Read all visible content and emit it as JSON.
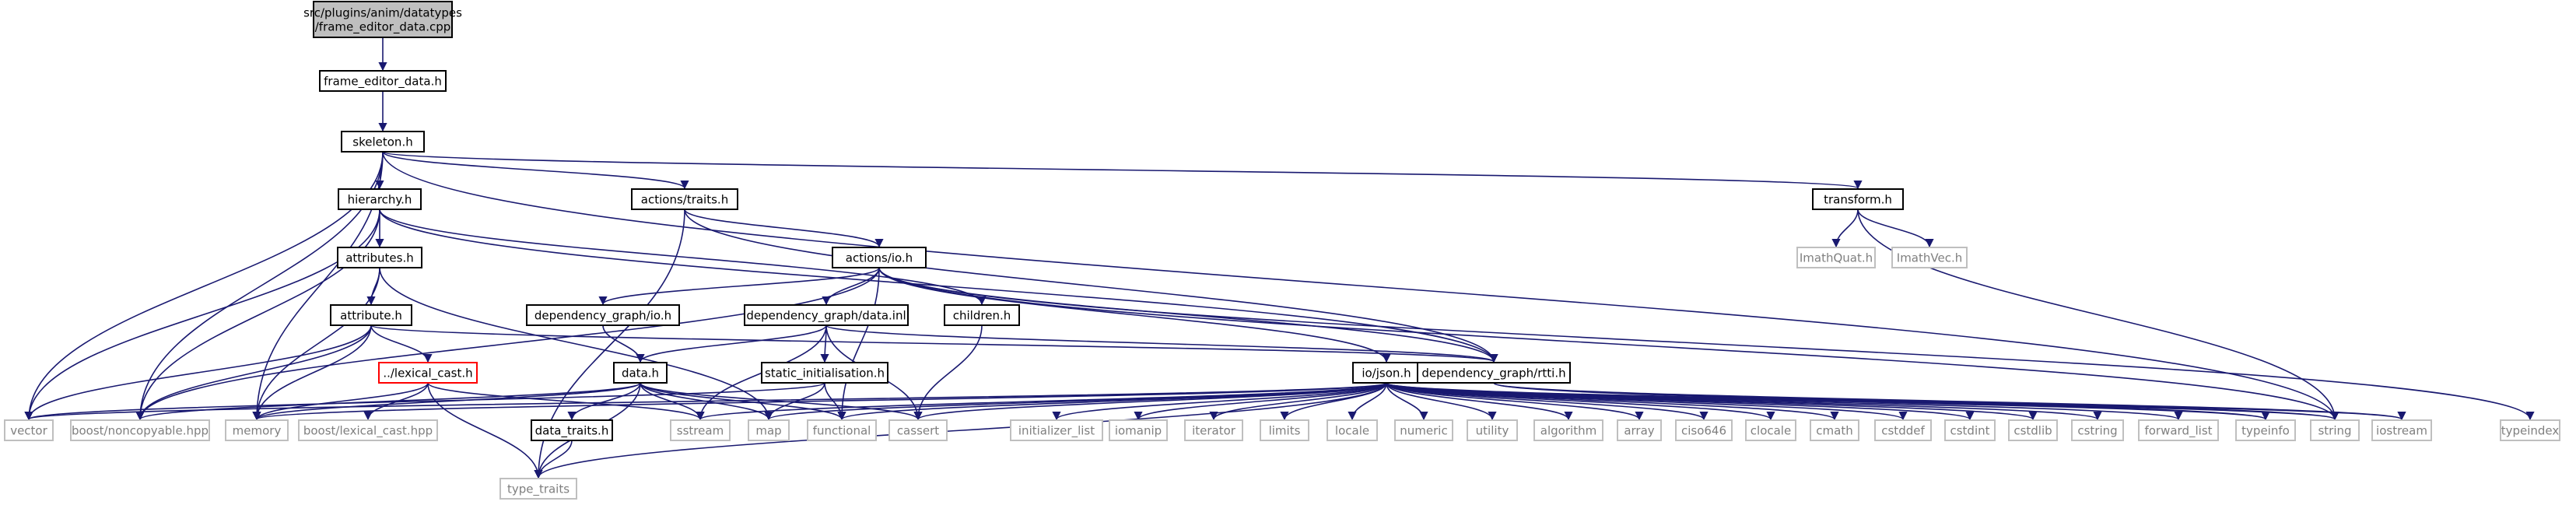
{
  "colors": {
    "edge": "#191970",
    "node_border": "#000000",
    "node_fill": "#ffffff",
    "root_fill": "#bfbfbf",
    "system_border": "#bfbfbf",
    "system_text": "#7f7f7f",
    "error_border": "#ff0000"
  },
  "nodes": [
    {
      "id": "root",
      "lines": [
        "src/plugins/anim/datatypes",
        "/frame_editor_data.cpp"
      ],
      "style": "root"
    },
    {
      "id": "frame_editor_data_h",
      "lines": [
        "frame_editor_data.h"
      ],
      "style": "normal"
    },
    {
      "id": "skeleton_h",
      "lines": [
        "skeleton.h"
      ],
      "style": "normal"
    },
    {
      "id": "hierarchy_h",
      "lines": [
        "hierarchy.h"
      ],
      "style": "normal"
    },
    {
      "id": "actions_traits_h",
      "lines": [
        "actions/traits.h"
      ],
      "style": "normal"
    },
    {
      "id": "transform_h",
      "lines": [
        "transform.h"
      ],
      "style": "normal"
    },
    {
      "id": "attributes_h",
      "lines": [
        "attributes.h"
      ],
      "style": "normal"
    },
    {
      "id": "actions_io_h",
      "lines": [
        "actions/io.h"
      ],
      "style": "normal"
    },
    {
      "id": "imathquat_h",
      "lines": [
        "ImathQuat.h"
      ],
      "style": "system"
    },
    {
      "id": "imathvec_h",
      "lines": [
        "ImathVec.h"
      ],
      "style": "system"
    },
    {
      "id": "attribute_h",
      "lines": [
        "attribute.h"
      ],
      "style": "normal"
    },
    {
      "id": "dependency_graph_io_h",
      "lines": [
        "dependency_graph/io.h"
      ],
      "style": "normal"
    },
    {
      "id": "dependency_graph_data_inl",
      "lines": [
        "dependency_graph/data.inl"
      ],
      "style": "normal"
    },
    {
      "id": "children_h",
      "lines": [
        "children.h"
      ],
      "style": "normal"
    },
    {
      "id": "lexical_cast_h",
      "lines": [
        "../lexical_cast.h"
      ],
      "style": "error"
    },
    {
      "id": "data_h",
      "lines": [
        "data.h"
      ],
      "style": "normal"
    },
    {
      "id": "static_initialisation_h",
      "lines": [
        "static_initialisation.h"
      ],
      "style": "normal"
    },
    {
      "id": "io_json_h",
      "lines": [
        "io/json.h"
      ],
      "style": "normal"
    },
    {
      "id": "dependency_graph_rtti_h",
      "lines": [
        "dependency_graph/rtti.h"
      ],
      "style": "normal"
    },
    {
      "id": "data_traits_h",
      "lines": [
        "data_traits.h"
      ],
      "style": "normal"
    },
    {
      "id": "vector",
      "lines": [
        "vector"
      ],
      "style": "system"
    },
    {
      "id": "boost_noncopyable_hpp",
      "lines": [
        "boost/noncopyable.hpp"
      ],
      "style": "system"
    },
    {
      "id": "memory",
      "lines": [
        "memory"
      ],
      "style": "system"
    },
    {
      "id": "boost_lexical_cast_hpp",
      "lines": [
        "boost/lexical_cast.hpp"
      ],
      "style": "system"
    },
    {
      "id": "sstream",
      "lines": [
        "sstream"
      ],
      "style": "system"
    },
    {
      "id": "map",
      "lines": [
        "map"
      ],
      "style": "system"
    },
    {
      "id": "functional",
      "lines": [
        "functional"
      ],
      "style": "system"
    },
    {
      "id": "cassert",
      "lines": [
        "cassert"
      ],
      "style": "system"
    },
    {
      "id": "initializer_list",
      "lines": [
        "initializer_list"
      ],
      "style": "system"
    },
    {
      "id": "iomanip",
      "lines": [
        "iomanip"
      ],
      "style": "system"
    },
    {
      "id": "iterator",
      "lines": [
        "iterator"
      ],
      "style": "system"
    },
    {
      "id": "limits",
      "lines": [
        "limits"
      ],
      "style": "system"
    },
    {
      "id": "locale",
      "lines": [
        "locale"
      ],
      "style": "system"
    },
    {
      "id": "numeric",
      "lines": [
        "numeric"
      ],
      "style": "system"
    },
    {
      "id": "utility",
      "lines": [
        "utility"
      ],
      "style": "system"
    },
    {
      "id": "algorithm",
      "lines": [
        "algorithm"
      ],
      "style": "system"
    },
    {
      "id": "array",
      "lines": [
        "array"
      ],
      "style": "system"
    },
    {
      "id": "ciso646",
      "lines": [
        "ciso646"
      ],
      "style": "system"
    },
    {
      "id": "clocale",
      "lines": [
        "clocale"
      ],
      "style": "system"
    },
    {
      "id": "cmath",
      "lines": [
        "cmath"
      ],
      "style": "system"
    },
    {
      "id": "cstddef",
      "lines": [
        "cstddef"
      ],
      "style": "system"
    },
    {
      "id": "cstdint",
      "lines": [
        "cstdint"
      ],
      "style": "system"
    },
    {
      "id": "cstdlib",
      "lines": [
        "cstdlib"
      ],
      "style": "system"
    },
    {
      "id": "cstring",
      "lines": [
        "cstring"
      ],
      "style": "system"
    },
    {
      "id": "forward_list",
      "lines": [
        "forward_list"
      ],
      "style": "system"
    },
    {
      "id": "typeinfo",
      "lines": [
        "typeinfo"
      ],
      "style": "system"
    },
    {
      "id": "string",
      "lines": [
        "string"
      ],
      "style": "system"
    },
    {
      "id": "iostream",
      "lines": [
        "iostream"
      ],
      "style": "system"
    },
    {
      "id": "typeindex",
      "lines": [
        "typeindex"
      ],
      "style": "system"
    },
    {
      "id": "type_traits",
      "lines": [
        "type_traits"
      ],
      "style": "system"
    }
  ],
  "edges": [
    [
      "root",
      "frame_editor_data_h"
    ],
    [
      "frame_editor_data_h",
      "skeleton_h"
    ],
    [
      "skeleton_h",
      "hierarchy_h"
    ],
    [
      "skeleton_h",
      "actions_traits_h"
    ],
    [
      "skeleton_h",
      "transform_h"
    ],
    [
      "skeleton_h",
      "vector"
    ],
    [
      "skeleton_h",
      "boost_noncopyable_hpp"
    ],
    [
      "skeleton_h",
      "memory"
    ],
    [
      "skeleton_h",
      "string"
    ],
    [
      "hierarchy_h",
      "attributes_h"
    ],
    [
      "hierarchy_h",
      "children_h"
    ],
    [
      "hierarchy_h",
      "dependency_graph_rtti_h"
    ],
    [
      "hierarchy_h",
      "vector"
    ],
    [
      "hierarchy_h",
      "boost_noncopyable_hpp"
    ],
    [
      "actions_traits_h",
      "actions_io_h"
    ],
    [
      "actions_traits_h",
      "dependency_graph_rtti_h"
    ],
    [
      "actions_traits_h",
      "type_traits"
    ],
    [
      "transform_h",
      "imathquat_h"
    ],
    [
      "transform_h",
      "imathvec_h"
    ],
    [
      "transform_h",
      "string"
    ],
    [
      "attributes_h",
      "attribute_h"
    ],
    [
      "attributes_h",
      "memory"
    ],
    [
      "attributes_h",
      "map"
    ],
    [
      "actions_io_h",
      "dependency_graph_io_h"
    ],
    [
      "actions_io_h",
      "dependency_graph_data_inl"
    ],
    [
      "actions_io_h",
      "io_json_h"
    ],
    [
      "actions_io_h",
      "dependency_graph_rtti_h"
    ],
    [
      "actions_io_h",
      "boost_noncopyable_hpp"
    ],
    [
      "actions_io_h",
      "functional"
    ],
    [
      "actions_io_h",
      "typeindex"
    ],
    [
      "actions_io_h",
      "string"
    ],
    [
      "attribute_h",
      "lexical_cast_h"
    ],
    [
      "attribute_h",
      "dependency_graph_rtti_h"
    ],
    [
      "attribute_h",
      "boost_noncopyable_hpp"
    ],
    [
      "attribute_h",
      "memory"
    ],
    [
      "attribute_h",
      "vector"
    ],
    [
      "dependency_graph_io_h",
      "data_h"
    ],
    [
      "dependency_graph_data_inl",
      "data_h"
    ],
    [
      "dependency_graph_data_inl",
      "static_initialisation_h"
    ],
    [
      "dependency_graph_data_inl",
      "dependency_graph_rtti_h"
    ],
    [
      "dependency_graph_data_inl",
      "sstream"
    ],
    [
      "dependency_graph_data_inl",
      "cassert"
    ],
    [
      "children_h",
      "cassert"
    ],
    [
      "lexical_cast_h",
      "boost_lexical_cast_hpp"
    ],
    [
      "lexical_cast_h",
      "memory"
    ],
    [
      "lexical_cast_h",
      "type_traits"
    ],
    [
      "lexical_cast_h",
      "sstream"
    ],
    [
      "data_h",
      "data_traits_h"
    ],
    [
      "data_h",
      "memory"
    ],
    [
      "data_h",
      "boost_noncopyable_hpp"
    ],
    [
      "data_h",
      "sstream"
    ],
    [
      "data_h",
      "map"
    ],
    [
      "data_h",
      "functional"
    ],
    [
      "data_h",
      "cassert"
    ],
    [
      "data_h",
      "type_traits"
    ],
    [
      "static_initialisation_h",
      "map"
    ],
    [
      "static_initialisation_h",
      "functional"
    ],
    [
      "static_initialisation_h",
      "vector"
    ],
    [
      "io_json_h",
      "memory"
    ],
    [
      "io_json_h",
      "sstream"
    ],
    [
      "io_json_h",
      "map"
    ],
    [
      "io_json_h",
      "functional"
    ],
    [
      "io_json_h",
      "cassert"
    ],
    [
      "io_json_h",
      "initializer_list"
    ],
    [
      "io_json_h",
      "iomanip"
    ],
    [
      "io_json_h",
      "iterator"
    ],
    [
      "io_json_h",
      "limits"
    ],
    [
      "io_json_h",
      "locale"
    ],
    [
      "io_json_h",
      "numeric"
    ],
    [
      "io_json_h",
      "utility"
    ],
    [
      "io_json_h",
      "algorithm"
    ],
    [
      "io_json_h",
      "array"
    ],
    [
      "io_json_h",
      "ciso646"
    ],
    [
      "io_json_h",
      "clocale"
    ],
    [
      "io_json_h",
      "cmath"
    ],
    [
      "io_json_h",
      "cstddef"
    ],
    [
      "io_json_h",
      "cstdint"
    ],
    [
      "io_json_h",
      "cstdlib"
    ],
    [
      "io_json_h",
      "cstring"
    ],
    [
      "io_json_h",
      "forward_list"
    ],
    [
      "io_json_h",
      "typeinfo"
    ],
    [
      "io_json_h",
      "string"
    ],
    [
      "io_json_h",
      "iostream"
    ],
    [
      "io_json_h",
      "vector"
    ],
    [
      "io_json_h",
      "type_traits"
    ],
    [
      "dependency_graph_rtti_h",
      "typeinfo"
    ],
    [
      "dependency_graph_rtti_h",
      "string"
    ],
    [
      "dependency_graph_rtti_h",
      "iostream"
    ],
    [
      "data_traits_h",
      "type_traits"
    ]
  ]
}
